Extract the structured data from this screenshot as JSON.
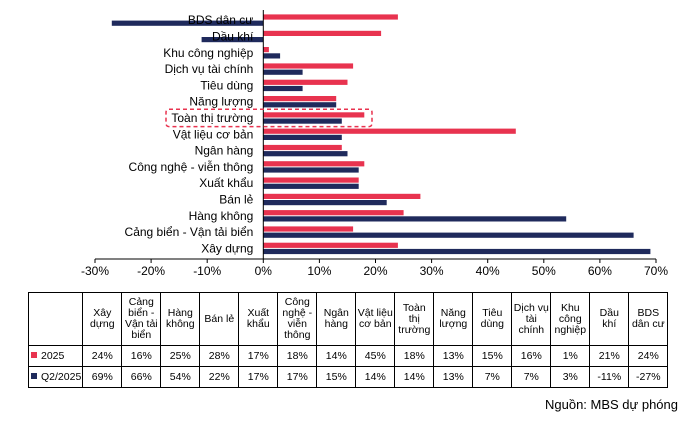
{
  "chart_data": {
    "type": "bar",
    "orientation": "horizontal",
    "categories": [
      "BDS dân cư",
      "Dầu khí",
      "Khu công nghiệp",
      "Dịch vụ tài chính",
      "Tiêu dùng",
      "Năng lượng",
      "Toàn thị trường",
      "Vật liệu cơ bản",
      "Ngân hàng",
      "Công nghệ - viễn thông",
      "Xuất khẩu",
      "Bán lẻ",
      "Hàng không",
      "Cảng biển - Vận tải biển",
      "Xây dựng"
    ],
    "series": [
      {
        "name": "2025",
        "color": "#e8334f",
        "values": [
          24,
          21,
          1,
          16,
          15,
          13,
          18,
          45,
          14,
          18,
          17,
          28,
          25,
          16,
          24
        ]
      },
      {
        "name": "Q2/2025",
        "color": "#1f2a5c",
        "values": [
          -27,
          -11,
          3,
          7,
          7,
          13,
          14,
          14,
          15,
          17,
          17,
          22,
          54,
          66,
          69
        ]
      }
    ],
    "xlim": [
      -30,
      70
    ],
    "xticks": [
      "-30%",
      "-20%",
      "-10%",
      "0%",
      "10%",
      "20%",
      "30%",
      "40%",
      "50%",
      "60%",
      "70%"
    ],
    "highlight_category": "Toàn thị trường",
    "grid": false
  },
  "table": {
    "columns": [
      "Xây dựng",
      "Cảng biển - Vận tải biển",
      "Hàng không",
      "Bán lẻ",
      "Xuất khẩu",
      "Công nghệ - viễn thông",
      "Ngân hàng",
      "Vật liệu cơ bản",
      "Toàn thị trường",
      "Năng lượng",
      "Tiêu dùng",
      "Dịch vụ tài chính",
      "Khu công nghiệp",
      "Dầu khí",
      "BDS dân cư"
    ],
    "rows": [
      {
        "label": "2025",
        "color": "#e8334f",
        "cells": [
          "24%",
          "16%",
          "25%",
          "28%",
          "17%",
          "18%",
          "14%",
          "45%",
          "18%",
          "13%",
          "15%",
          "16%",
          "1%",
          "21%",
          "24%"
        ]
      },
      {
        "label": "Q2/2025",
        "color": "#1f2a5c",
        "cells": [
          "69%",
          "66%",
          "54%",
          "22%",
          "17%",
          "17%",
          "15%",
          "14%",
          "14%",
          "13%",
          "7%",
          "7%",
          "3%",
          "-11%",
          "-27%"
        ]
      }
    ]
  },
  "source": "Nguồn: MBS dự phóng"
}
